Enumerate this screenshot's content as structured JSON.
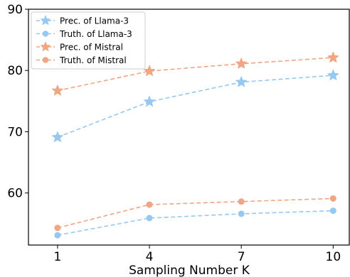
{
  "chart_data": {
    "type": "line",
    "xlabel": "Sampling Number K",
    "ylabel": "",
    "x": [
      1,
      4,
      7,
      10
    ],
    "xticks": [
      "1",
      "4",
      "7",
      "10"
    ],
    "ylim": [
      51.5,
      90
    ],
    "yticks": [
      "60",
      "70",
      "80",
      "90"
    ],
    "ytick_values": [
      60,
      70,
      80,
      90
    ],
    "grid": false,
    "legend_position": "top-left",
    "series": [
      {
        "name": "Prec. of Llama-3",
        "values": [
          69.1,
          74.9,
          78.1,
          79.2
        ],
        "color": "#97c8ef",
        "marker": "star"
      },
      {
        "name": "Truth. of Llama-3",
        "values": [
          53.1,
          55.9,
          56.6,
          57.1
        ],
        "color": "#97c8ef",
        "marker": "circle"
      },
      {
        "name": "Prec. of Mistral",
        "values": [
          76.7,
          79.9,
          81.1,
          82.1
        ],
        "color": "#f0a583",
        "marker": "star"
      },
      {
        "name": "Truth. of Mistral",
        "values": [
          54.3,
          58.1,
          58.6,
          59.1
        ],
        "color": "#f0a583",
        "marker": "circle"
      }
    ]
  }
}
